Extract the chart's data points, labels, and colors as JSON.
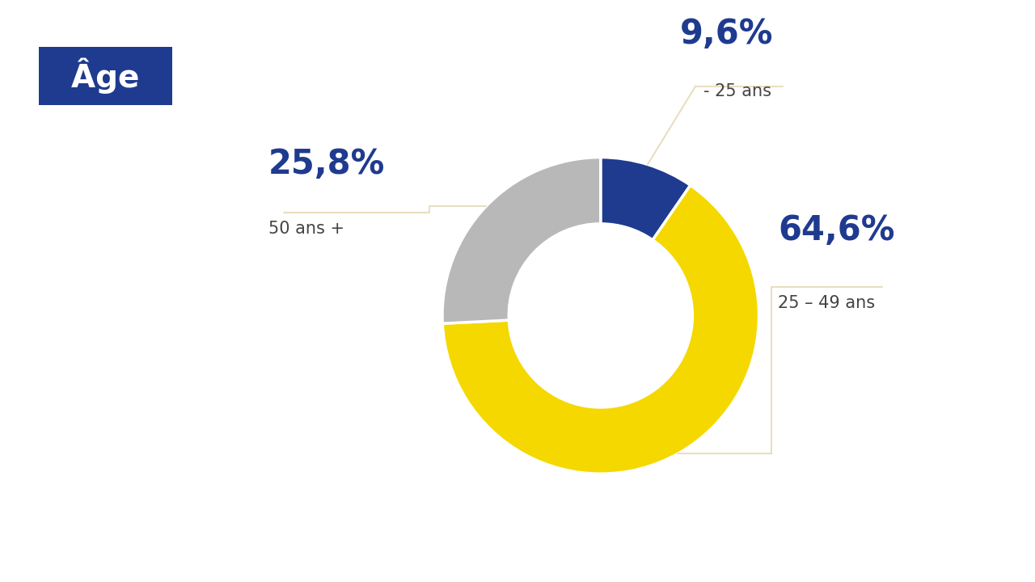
{
  "title": "Âge",
  "slices": [
    9.6,
    64.6,
    25.8
  ],
  "labels": [
    "- 25 ans",
    "25 – 49 ans",
    "50 ans +"
  ],
  "percentages": [
    "9,6%",
    "64,6%",
    "25,8%"
  ],
  "colors": [
    "#1f3b8f",
    "#f5d800",
    "#b8b8b8"
  ],
  "background_color": "#f0f4f8",
  "label_color": "#1f3b8f",
  "sublabel_color": "#444444",
  "connector_color": "#e8dfc0",
  "badge_bg": "#1f3b8f",
  "badge_text_color": "#ffffff",
  "donut_width": 0.42,
  "start_angle": 90,
  "percent_fontsize": 30,
  "sublabel_fontsize": 15,
  "badge_fontsize": 28
}
